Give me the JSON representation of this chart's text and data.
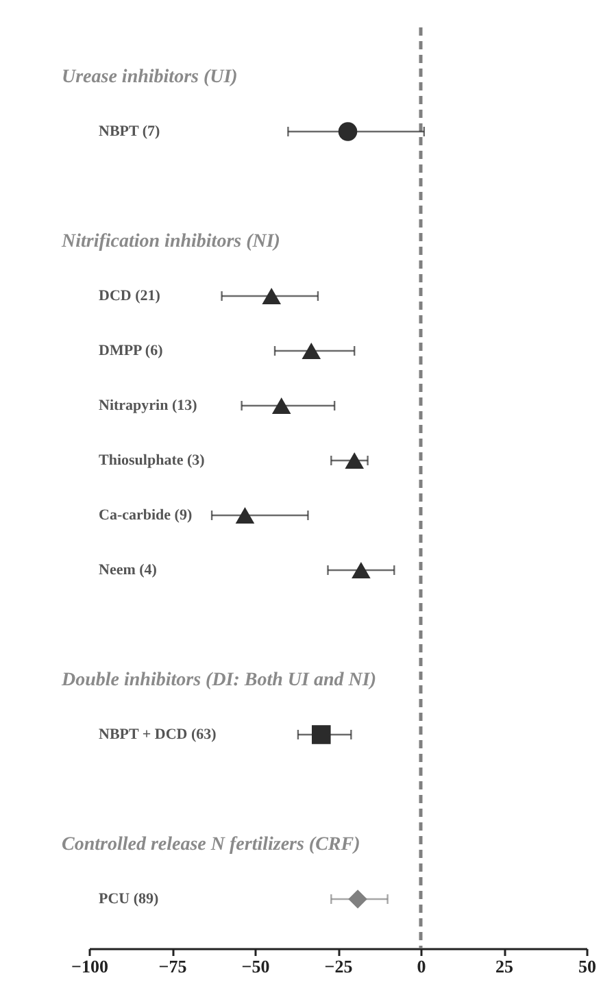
{
  "chart_data": {
    "type": "scatter",
    "orientation": "horizontal",
    "categories": [
      "Urease inhibitors (UI)",
      "NBPT (7)",
      null,
      "Nitrification inhibitors (NI)",
      "DCD (21)",
      "DMPP (6)",
      "Nitrapyrin (13)",
      "Thiosulphate (3)",
      "Ca-carbide (9)",
      "Neem (4)",
      null,
      "Double inhibitors (DI: Both UI and NI)",
      "NBPT + DCD (63)",
      null,
      "Controlled release N fertilizers (CRF)",
      "PCU (89)"
    ],
    "series": [
      {
        "color": "#2b2b2b",
        "marker": "circle",
        "values": [
          null,
          -22,
          null,
          null,
          null,
          null,
          null,
          null,
          null,
          null,
          null,
          null,
          null,
          null,
          null,
          null
        ],
        "errors": [
          null,
          [
            -40,
            1
          ],
          null,
          null,
          null,
          null,
          null,
          null,
          null,
          null,
          null,
          null,
          null,
          null,
          null,
          null
        ]
      },
      {
        "color": "#2b2b2b",
        "marker": "triangle",
        "values": [
          null,
          null,
          null,
          null,
          -45,
          -33,
          -42,
          -20,
          -53,
          -18,
          null,
          null,
          null,
          null,
          null,
          null
        ],
        "errors": [
          null,
          null,
          null,
          null,
          [
            -60,
            -31
          ],
          [
            -44,
            -20
          ],
          [
            -54,
            -26
          ],
          [
            -27,
            -16
          ],
          [
            -63,
            -34
          ],
          [
            -28,
            -8
          ],
          null,
          null,
          null,
          null,
          null,
          null
        ]
      },
      {
        "color": "#2b2b2b",
        "marker": "square",
        "values": [
          null,
          null,
          null,
          null,
          null,
          null,
          null,
          null,
          null,
          null,
          null,
          null,
          -30,
          null,
          null,
          null
        ],
        "errors": [
          null,
          null,
          null,
          null,
          null,
          null,
          null,
          null,
          null,
          null,
          null,
          null,
          [
            -37,
            -21
          ],
          null,
          null,
          null
        ]
      },
      {
        "color": "#808080",
        "marker": "diamond",
        "values": [
          null,
          null,
          null,
          null,
          null,
          null,
          null,
          null,
          null,
          null,
          null,
          null,
          null,
          null,
          null,
          -19
        ],
        "errors": [
          null,
          null,
          null,
          null,
          null,
          null,
          null,
          null,
          null,
          null,
          null,
          null,
          null,
          null,
          null,
          [
            -27,
            -10
          ]
        ]
      }
    ],
    "xlim": [
      -100,
      50
    ],
    "xticks": [
      -100,
      -75,
      -50,
      -25,
      0,
      25,
      50
    ],
    "ref_lines": [
      {
        "axis": "x",
        "value": 0,
        "line_style": "dashed",
        "color": "#808080"
      }
    ],
    "tick_labels": "x"
  }
}
